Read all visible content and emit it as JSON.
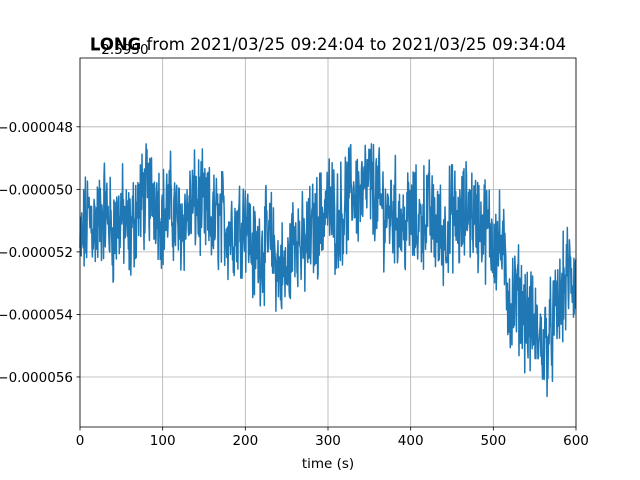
{
  "chart_data": {
    "type": "line",
    "title_bold": "LONG",
    "title_rest": " from 2021/03/25 09:24:04 to 2021/03/25 09:34:04",
    "offset_label": "−2.5950",
    "xlabel": "time (s)",
    "ylabel": "",
    "xlim": [
      0,
      600
    ],
    "ylim": [
      -5.76e-05,
      -4.58e-05
    ],
    "xticks": [
      0,
      100,
      200,
      300,
      400,
      500,
      600
    ],
    "xtick_labels": [
      "0",
      "100",
      "200",
      "300",
      "400",
      "500",
      "600"
    ],
    "yticks": [
      -4.8e-05,
      -5e-05,
      -5.2e-05,
      -5.4e-05,
      -5.6e-05
    ],
    "ytick_labels": [
      "−0.000048",
      "−0.000050",
      "−0.000052",
      "−0.000054",
      "−0.000056"
    ],
    "grid": true,
    "color": "#1f77b4",
    "series": [
      {
        "x": [
          0,
          10,
          20,
          30,
          40,
          50,
          60,
          70,
          80,
          90,
          100,
          110,
          120,
          130,
          140,
          150,
          160,
          170,
          180,
          190,
          200,
          210,
          220,
          230,
          240,
          250,
          260,
          270,
          280,
          290,
          300,
          310,
          320,
          330,
          340,
          350,
          360,
          370,
          380,
          390,
          400,
          410,
          420,
          430,
          440,
          450,
          460,
          470,
          480,
          490,
          500,
          510,
          520,
          530,
          540,
          550,
          560,
          570,
          580,
          590,
          600
        ],
        "y": [
          -5.2e-05,
          -5.08e-05,
          -5.12e-05,
          -5.06e-05,
          -5.14e-05,
          -5.08e-05,
          -5.16e-05,
          -5.05e-05,
          -5.02e-05,
          -5.01e-05,
          -5.09e-05,
          -5.05e-05,
          -5.12e-05,
          -5.08e-05,
          -5.04e-05,
          -5.07e-05,
          -5.11e-05,
          -5.09e-05,
          -5.13e-05,
          -5.12e-05,
          -5.08e-05,
          -5.21e-05,
          -5.19e-05,
          -5.16e-05,
          -5.25e-05,
          -5.28e-05,
          -5.12e-05,
          -5.2e-05,
          -5.14e-05,
          -5.1e-05,
          -5.04e-05,
          -5.1e-05,
          -5.06e-05,
          -5e-05,
          -5.02e-05,
          -4.98e-05,
          -5.03e-05,
          -5.08e-05,
          -5.06e-05,
          -5.12e-05,
          -5.09e-05,
          -5.11e-05,
          -5.06e-05,
          -5.12e-05,
          -5.15e-05,
          -5.08e-05,
          -5.12e-05,
          -5.05e-05,
          -5.1e-05,
          -5.12e-05,
          -5.16e-05,
          -5.18e-05,
          -5.37e-05,
          -5.34e-05,
          -5.41e-05,
          -5.45e-05,
          -5.5e-05,
          -5.46e-05,
          -5.36e-05,
          -5.28e-05,
          -5.3e-05
        ]
      }
    ]
  }
}
